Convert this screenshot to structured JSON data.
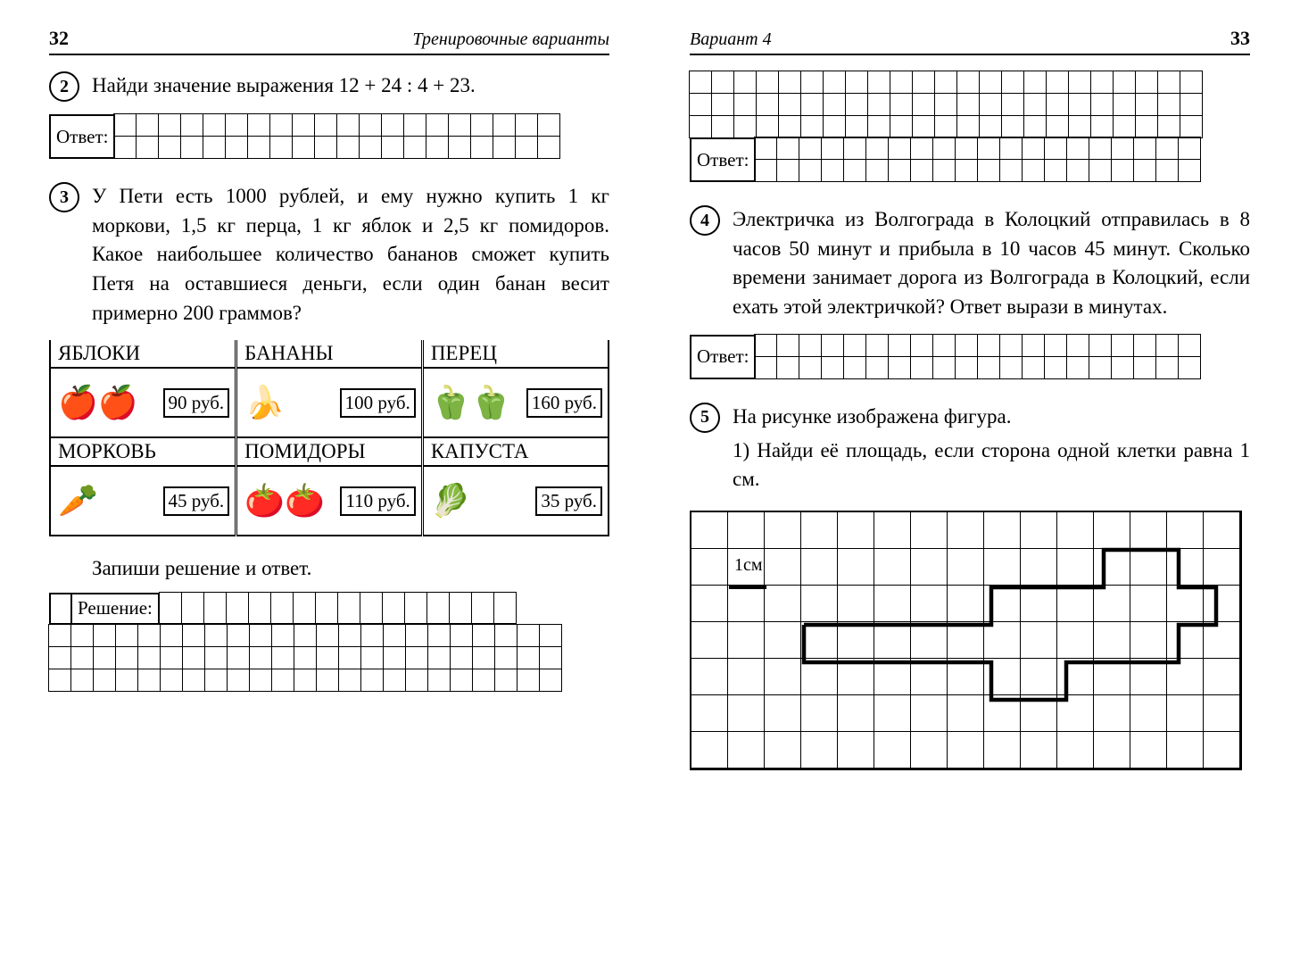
{
  "left": {
    "page_num": "32",
    "header_title": "Тренировочные варианты",
    "q2": {
      "num": "2",
      "text": "Найди значение выражения 12 + 24 : 4 + 23.",
      "answer_label": "Ответ:"
    },
    "q3": {
      "num": "3",
      "text": "У Пети есть 1000 рублей, и ему нужно купить 1 кг моркови, 1,5 кг перца, 1 кг яблок и 2,5 кг помидоров. Какое наибольшее количество бананов сможет купить Петя на оставшиеся деньги, если один банан весит примерно 200 граммов?",
      "products": [
        {
          "name": "ЯБЛОКИ",
          "price": "90 руб."
        },
        {
          "name": "БАНАНЫ",
          "price": "100 руб."
        },
        {
          "name": "ПЕРЕЦ",
          "price": "160 руб."
        },
        {
          "name": "МОРКОВЬ",
          "price": "45 руб."
        },
        {
          "name": "ПОМИДОРЫ",
          "price": "110 руб."
        },
        {
          "name": "КАПУСТА",
          "price": "35 руб."
        }
      ],
      "instruction": "Запиши решение и ответ.",
      "solution_label": "Решение:"
    }
  },
  "right": {
    "page_num": "33",
    "header_title": "Вариант 4",
    "top_answer_label": "Ответ:",
    "q4": {
      "num": "4",
      "text": "Электричка из Волгограда в Колоцкий отправилась в 8 часов 50 минут и прибыла в 10 часов 45 минут. Сколько времени занимает дорога из Волгограда в Колоцкий, если ехать этой электричкой? Ответ вырази в минутах.",
      "answer_label": "Ответ:"
    },
    "q5": {
      "num": "5",
      "text_a": "На рисунке изображена фигура.",
      "text_b": "1) Найди её площадь, если сторона одной клетки равна 1 см.",
      "cm_label": "1см"
    },
    "grid": {
      "answer_cols": 20,
      "top_rows_above": 3,
      "figure_cols": 15,
      "figure_rows": 7
    }
  }
}
